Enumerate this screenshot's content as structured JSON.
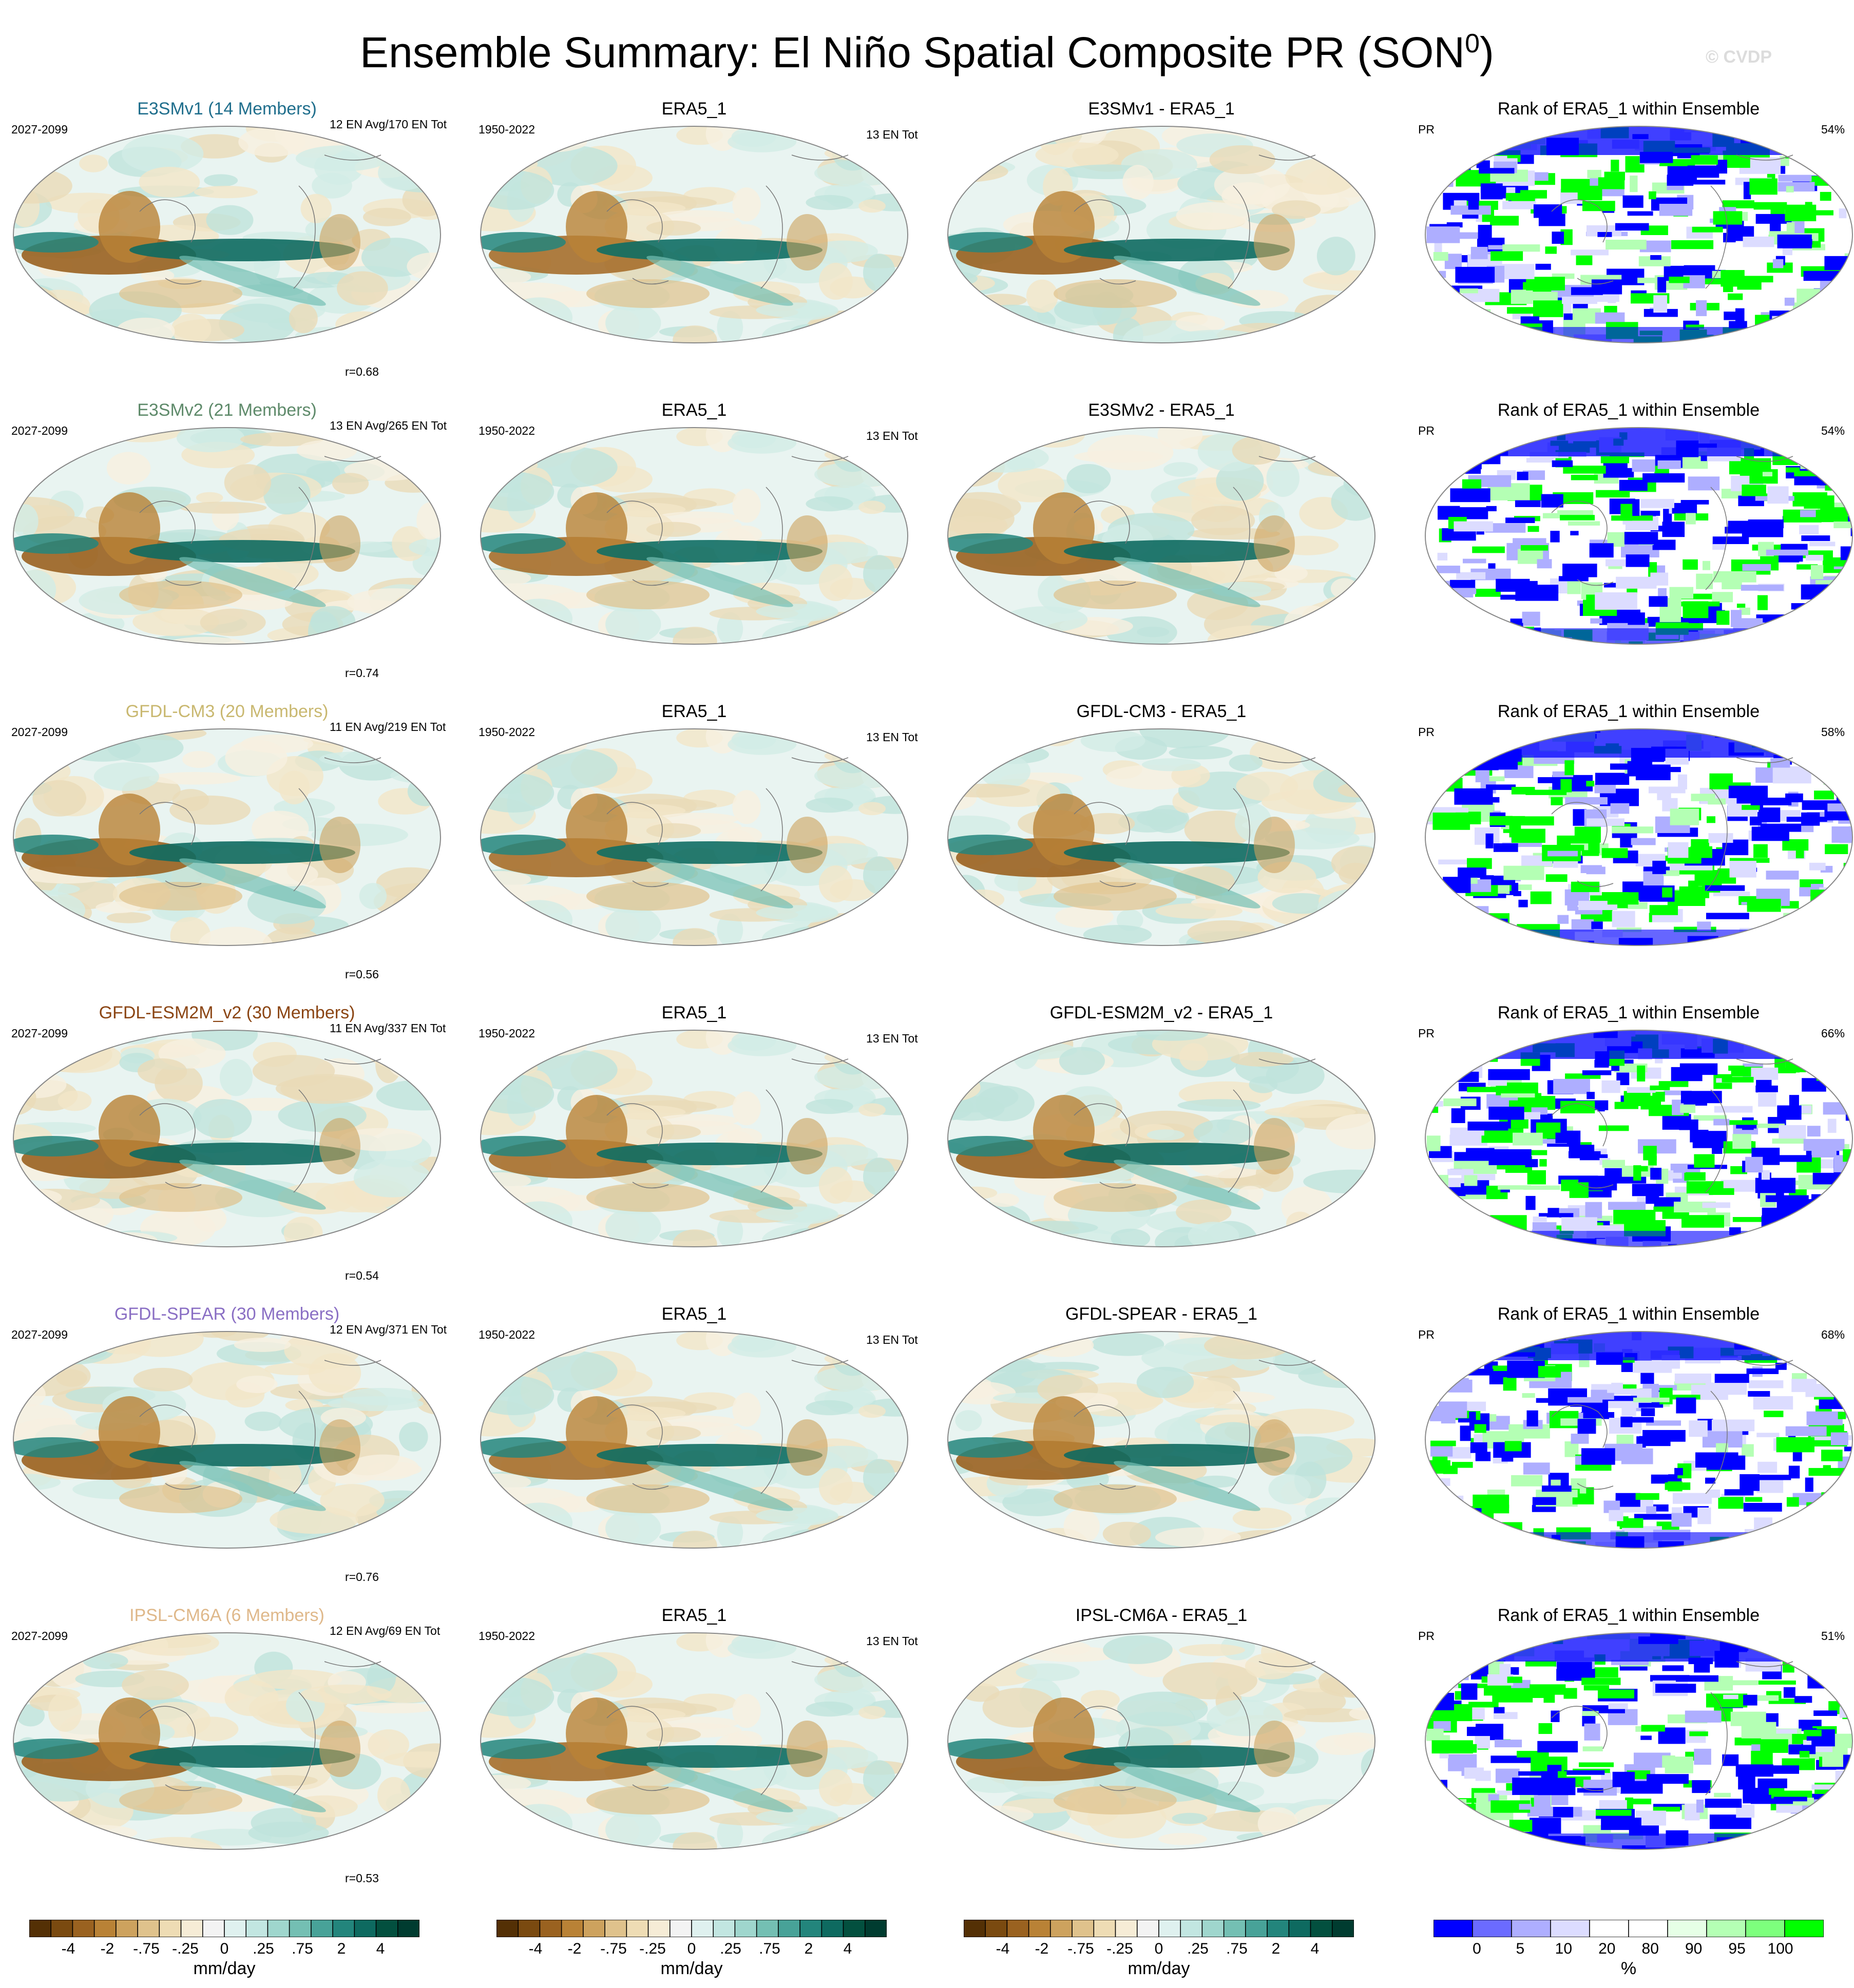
{
  "title": "Ensemble Summary: El Niño Spatial Composite PR (SON",
  "title_sup": "0",
  "title_close": ")",
  "watermark": "© CVDP",
  "rows": [
    {
      "model_title": "E3SMv1 (14 Members)",
      "model_color": "#1f6e8c",
      "period": "2027-2099",
      "en_info": "12 EN Avg/170 EN Tot",
      "r": "r=0.68",
      "obs_title": "ERA5_1",
      "obs_period": "1950-2022",
      "obs_info": "13 EN Tot",
      "diff_title": "E3SMv1 - ERA5_1",
      "rank_title": "Rank of ERA5_1 within Ensemble",
      "rank_var": "PR",
      "rank_pct": "54%"
    },
    {
      "model_title": "E3SMv2 (21 Members)",
      "model_color": "#5e8a6a",
      "period": "2027-2099",
      "en_info": "13 EN Avg/265 EN Tot",
      "r": "r=0.74",
      "obs_title": "ERA5_1",
      "obs_period": "1950-2022",
      "obs_info": "13 EN Tot",
      "diff_title": "E3SMv2 - ERA5_1",
      "rank_title": "Rank of ERA5_1 within Ensemble",
      "rank_var": "PR",
      "rank_pct": "54%"
    },
    {
      "model_title": "GFDL-CM3 (20 Members)",
      "model_color": "#c9b870",
      "period": "2027-2099",
      "en_info": "11 EN Avg/219 EN Tot",
      "r": "r=0.56",
      "obs_title": "ERA5_1",
      "obs_period": "1950-2022",
      "obs_info": "13 EN Tot",
      "diff_title": "GFDL-CM3 - ERA5_1",
      "rank_title": "Rank of ERA5_1 within Ensemble",
      "rank_var": "PR",
      "rank_pct": "58%"
    },
    {
      "model_title": "GFDL-ESM2M_v2 (30 Members)",
      "model_color": "#8b4513",
      "period": "2027-2099",
      "en_info": "11 EN Avg/337 EN Tot",
      "r": "r=0.54",
      "obs_title": "ERA5_1",
      "obs_period": "1950-2022",
      "obs_info": "13 EN Tot",
      "diff_title": "GFDL-ESM2M_v2 - ERA5_1",
      "rank_title": "Rank of ERA5_1 within Ensemble",
      "rank_var": "PR",
      "rank_pct": "66%"
    },
    {
      "model_title": "GFDL-SPEAR (30 Members)",
      "model_color": "#8a6fc4",
      "period": "2027-2099",
      "en_info": "12 EN Avg/371 EN Tot",
      "r": "r=0.76",
      "obs_title": "ERA5_1",
      "obs_period": "1950-2022",
      "obs_info": "13 EN Tot",
      "diff_title": "GFDL-SPEAR - ERA5_1",
      "rank_title": "Rank of ERA5_1 within Ensemble",
      "rank_var": "PR",
      "rank_pct": "68%"
    },
    {
      "model_title": "IPSL-CM6A (6 Members)",
      "model_color": "#dfb88a",
      "period": "2027-2099",
      "en_info": "12 EN Avg/69 EN Tot",
      "r": "r=0.53",
      "obs_title": "ERA5_1",
      "obs_period": "1950-2022",
      "obs_info": "13 EN Tot",
      "diff_title": "IPSL-CM6A - ERA5_1",
      "rank_title": "Rank of ERA5_1 within Ensemble",
      "rank_var": "PR",
      "rank_pct": "51%"
    }
  ],
  "colorbar_pr": {
    "colors": [
      "#543005",
      "#7a4a10",
      "#9a6220",
      "#b98236",
      "#cda25e",
      "#dfc28c",
      "#eedcb4",
      "#f6ecd6",
      "#f3f3f3",
      "#dff1ef",
      "#c2e6e1",
      "#9fd6cd",
      "#74bfb3",
      "#48a298",
      "#23857c",
      "#0e6a60",
      "#03503f",
      "#003c30"
    ],
    "ticks": [
      "-4",
      "-2",
      "-.75",
      "-.25",
      "0",
      ".25",
      ".75",
      "2",
      "4"
    ],
    "units": "mm/day"
  },
  "colorbar_rank": {
    "colors": [
      "#0000ff",
      "#6b6bff",
      "#aeaeff",
      "#dcdcff",
      "#ffffff",
      "#ffffff",
      "#e6ffe6",
      "#b4ffb4",
      "#7dff7d",
      "#00ff00"
    ],
    "ticks": [
      "0",
      "5",
      "10",
      "20",
      "80",
      "90",
      "95",
      "100"
    ],
    "units": "%"
  }
}
